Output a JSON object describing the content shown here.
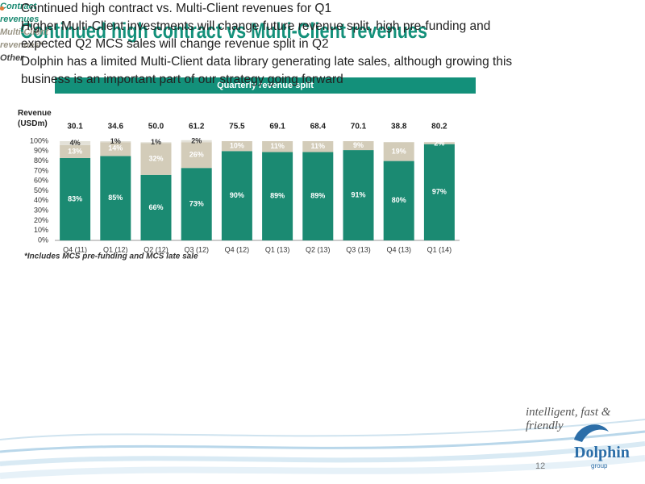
{
  "title": "Continued high contract vs Multi-Client revenues",
  "chart_data": {
    "type": "stacked_bar",
    "title": "Quarterly revenue split",
    "y_label": "Revenue (USDm)",
    "categories": [
      "Q4 (11)",
      "Q1 (12)",
      "Q2 (12)",
      "Q3 (12)",
      "Q4 (12)",
      "Q1 (13)",
      "Q2 (13)",
      "Q3 (13)",
      "Q4 (13)",
      "Q1 (14)"
    ],
    "totals": {
      "values": [
        30.1,
        34.6,
        50.0,
        61.2,
        75.5,
        69.1,
        68.4,
        70.1,
        38.8,
        80.2
      ],
      "value_labels": [
        "30.1",
        "34.6",
        "50.0",
        "61.2",
        "75.5",
        "69.1",
        "68.4",
        "70.1",
        "38.8",
        "80.2"
      ]
    },
    "series": [
      {
        "name": "Contract revenues",
        "color": "#1b8a72",
        "label_color": "#ffffff",
        "values": [
          83,
          85,
          66,
          73,
          90,
          89,
          89,
          91,
          80,
          97
        ],
        "value_labels": [
          "83%",
          "85%",
          "66%",
          "73%",
          "90%",
          "89%",
          "89%",
          "91%",
          "80%",
          "97%"
        ]
      },
      {
        "name": "Multi-Client revenues*",
        "color": "#d3ccb9",
        "label_color": "#ffffff",
        "values": [
          13,
          14,
          32,
          26,
          10,
          11,
          11,
          9,
          19,
          2
        ],
        "value_labels": [
          "13%",
          "14%",
          "32%",
          "26%",
          "10%",
          "11%",
          "11%",
          "9%",
          "19%",
          "2%"
        ]
      },
      {
        "name": "Other",
        "color": "#e3e1d8",
        "label_color": "#333333",
        "values": [
          4,
          1,
          1,
          2,
          null,
          null,
          null,
          null,
          null,
          null
        ],
        "value_labels": [
          "4%",
          "1%",
          "1%",
          "2%",
          null,
          null,
          null,
          null,
          null,
          null
        ]
      }
    ],
    "ylim": [
      0,
      100
    ],
    "yticks": [
      {
        "value": 0,
        "label": "0%"
      },
      {
        "value": 10,
        "label": "10%"
      },
      {
        "value": 20,
        "label": "20%"
      },
      {
        "value": 30,
        "label": "30%"
      },
      {
        "value": 40,
        "label": "40%"
      },
      {
        "value": 50,
        "label": "50%"
      },
      {
        "value": 60,
        "label": "60%"
      },
      {
        "value": 70,
        "label": "70%"
      },
      {
        "value": 80,
        "label": "80%"
      },
      {
        "value": 90,
        "label": "90%"
      },
      {
        "value": 100,
        "label": "100%"
      }
    ],
    "grid": false,
    "legend_position": "right",
    "footnote": "*Includes MCS pre-funding and MCS late sale"
  },
  "bullets": [
    "Continued high contract vs. Multi-Client revenues for Q1",
    "Higher Multi-Client investments will change future revenue split,  high pre-funding and expected Q2 MCS sales will change revenue split in Q2",
    "Dolphin has a limited Multi-Client data library  generating late sales, although growing this business is an important part of our strategy going forward"
  ],
  "tagline": "intelligent, fast & friendly",
  "logo": {
    "name": "Dolphin",
    "sub": "group"
  },
  "page_number": "12"
}
